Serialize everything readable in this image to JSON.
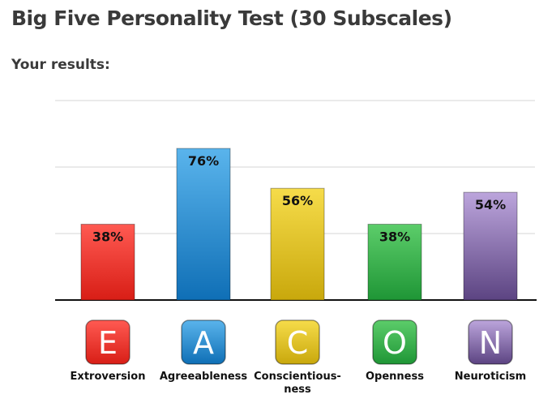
{
  "header": {
    "title": "Big Five Personality Test (30 Subscales)",
    "subtitle": "Your results:"
  },
  "chart_data": {
    "type": "bar",
    "categories": [
      "Extroversion",
      "Agreeableness",
      "Conscientious-ness",
      "Openness",
      "Neuroticism"
    ],
    "category_display": [
      "Extroversion",
      "Agreeableness",
      "Conscientious-\nness",
      "Openness",
      "Neuroticism"
    ],
    "letters": [
      "E",
      "A",
      "C",
      "O",
      "N"
    ],
    "values": [
      38,
      76,
      56,
      38,
      54
    ],
    "value_labels": [
      "38%",
      "76%",
      "56%",
      "38%",
      "54%"
    ],
    "ylim": [
      0,
      100
    ],
    "grid": true,
    "colors": [
      {
        "top": "#ff5a52",
        "bottom": "#d81e16"
      },
      {
        "top": "#5ab4ec",
        "bottom": "#0f6fb6"
      },
      {
        "top": "#f6dc4a",
        "bottom": "#c9a80c"
      },
      {
        "top": "#5ccd6a",
        "bottom": "#1f9636"
      },
      {
        "top": "#bca5dc",
        "bottom": "#5c4482"
      }
    ]
  }
}
